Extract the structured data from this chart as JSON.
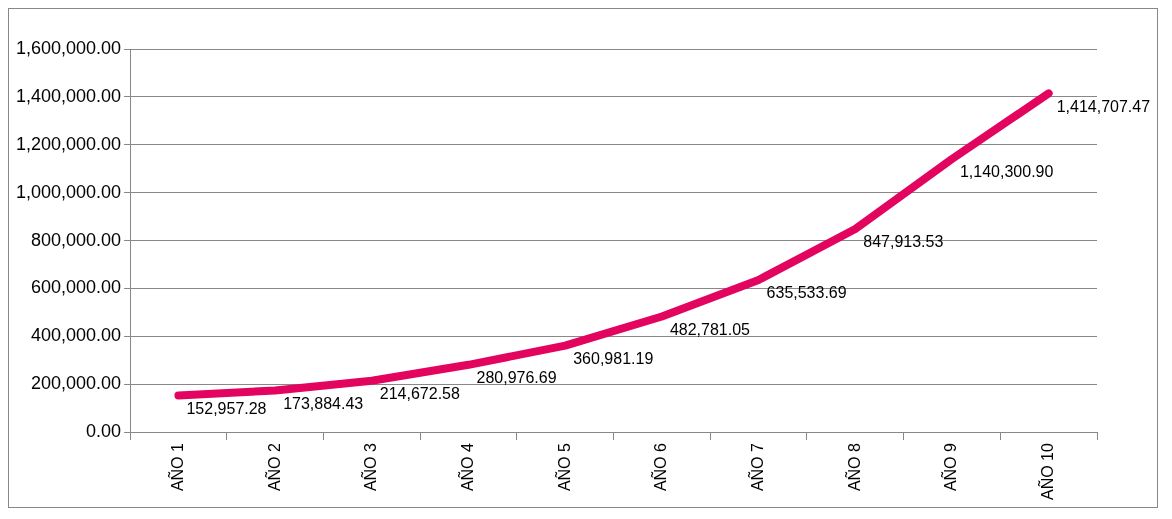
{
  "chart_data": {
    "type": "line",
    "categories": [
      "AÑO 1",
      "AÑO 2",
      "AÑO 3",
      "AÑO 4",
      "AÑO 5",
      "AÑO 6",
      "AÑO 7",
      "AÑO 8",
      "AÑO 9",
      "AÑO 10"
    ],
    "series": [
      {
        "color": "#e2045f",
        "values": [
          152957.28,
          173884.43,
          214672.58,
          280976.69,
          360981.19,
          482781.05,
          635533.69,
          847913.53,
          1140300.9,
          1414707.47
        ]
      }
    ],
    "value_labels": [
      "152,957.28",
      "173,884.43",
      "214,672.58",
      "280,976.69",
      "360,981.19",
      "482,781.05",
      "635,533.69",
      "847,913.53",
      "1,140,300.90",
      "1,414,707.47"
    ],
    "ylim": [
      0,
      1600000
    ],
    "yticks": [
      {
        "value": 0,
        "label": "0.00"
      },
      {
        "value": 200000,
        "label": "200,000.00"
      },
      {
        "value": 400000,
        "label": "400,000.00"
      },
      {
        "value": 600000,
        "label": "600,000.00"
      },
      {
        "value": 800000,
        "label": "800,000.00"
      },
      {
        "value": 1000000,
        "label": "1,000,000.00"
      },
      {
        "value": 1200000,
        "label": "1,200,000.00"
      },
      {
        "value": 1400000,
        "label": "1,400,000.00"
      },
      {
        "value": 1600000,
        "label": "1,600,000.00"
      }
    ],
    "grid": "y",
    "legend": false,
    "marker": "none",
    "line_style": "solid"
  }
}
